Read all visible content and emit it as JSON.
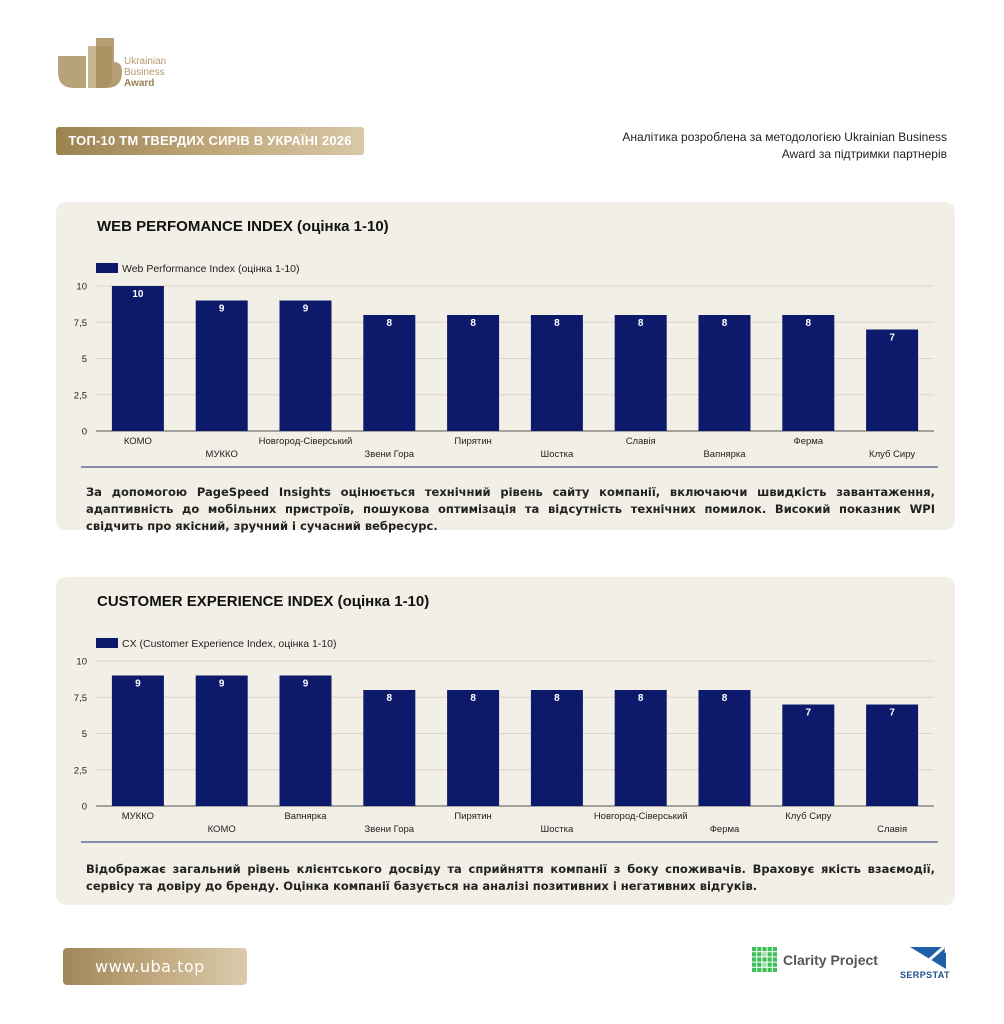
{
  "brand": {
    "logo_lines": [
      "Ukrainian",
      "Business",
      "Award"
    ],
    "title": "ТОП-10 ТМ ТВЕРДИХ СИРІВ В УКРАЇНІ 2026",
    "note": "Аналітика розроблена за методологією Ukrainian Business Award за підтримки партнерів",
    "url": "www.uba.top",
    "partners": [
      "Clarity Project",
      "SERPSTAT"
    ]
  },
  "colors": {
    "bar": "#0d1a6b",
    "card": "#f2efe6",
    "gold": "#b39a6a"
  },
  "chart_data": [
    {
      "type": "bar",
      "title": "WEB PERFOMANCE INDEX (оцінка 1-10)",
      "legend": "Web Performance Index (оцінка 1-10)",
      "categories": [
        "КОМО",
        "МУККО",
        "Новгород-Сіверський",
        "Звени Гора",
        "Пирятин",
        "Шостка",
        "Славія",
        "Вапнярка",
        "Ферма",
        "Клуб Сиру"
      ],
      "values": [
        10,
        9,
        9,
        8,
        8,
        8,
        8,
        8,
        8,
        7
      ],
      "yticks": [
        "0",
        "2,5",
        "5",
        "7,5",
        "10"
      ],
      "ylim": [
        0,
        10
      ],
      "legend_position": "top-left",
      "grid": true,
      "description": "За допомогою PageSpeed Insights оцінюється технічний рівень сайту компанії, включаючи швидкість завантаження, адаптивність до мобільних пристроїв, пошукова оптимізація та відсутність технічних помилок. Високий показник WPI свідчить про якісний, зручний і сучасний вебресурс."
    },
    {
      "type": "bar",
      "title": "CUSTOMER EXPERIENCE INDEX (оцінка 1-10)",
      "legend": "CX (Customer Experience Index, оцінка 1-10)",
      "categories": [
        "МУККО",
        "КОМО",
        "Вапнярка",
        "Звени Гора",
        "Пирятин",
        "Шостка",
        "Новгород-Сіверський",
        "Ферма",
        "Клуб Сиру",
        "Славія"
      ],
      "values": [
        9,
        9,
        9,
        8,
        8,
        8,
        8,
        8,
        7,
        7
      ],
      "yticks": [
        "0",
        "2,5",
        "5",
        "7,5",
        "10"
      ],
      "ylim": [
        0,
        10
      ],
      "legend_position": "top-left",
      "grid": true,
      "description": "Відображає загальний рівень клієнтського досвіду та сприйняття компанії з боку споживачів. Враховує якість взаємодії, сервісу та довіру до бренду. Оцінка компанії базується на аналізі позитивних і негативних відгуків."
    }
  ]
}
